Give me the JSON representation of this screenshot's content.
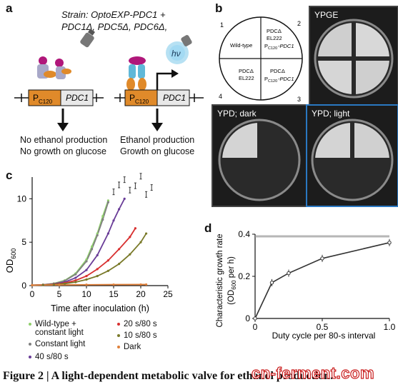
{
  "panel_a": {
    "letter": "a",
    "strain_line1": "Strain: OptoEXP-PDC1 +",
    "strain_line2": "PDC1Δ, PDC5Δ, PDC6Δ,",
    "promoter": "P",
    "promoter_sub": "C120",
    "gene": "PDC1",
    "light_label": "hν",
    "left_outcome_1": "No ethanol production",
    "left_outcome_2": "No growth on glucose",
    "right_outcome_1": "Ethanol production",
    "right_outcome_2": "Growth on glucose"
  },
  "panel_b": {
    "letter": "b",
    "plate_map": {
      "q1": "Wild-type",
      "q2_line1": "PDCΔ",
      "q2_line2": "EL222",
      "q2_line3_main": "P",
      "q2_line3_sub": "C120",
      "q2_line3_tail": "-PDC1",
      "q3_line1": "PDCΔ",
      "q3_line2_main": "P",
      "q3_line2_sub": "C120",
      "q3_line2_tail": "-PDC1",
      "q4_line1": "PDCΔ",
      "q4_line2": "EL222",
      "n1": "1",
      "n2": "2",
      "n3": "3",
      "n4": "4"
    },
    "plates": [
      {
        "label": "YPGE",
        "border": "#444444"
      },
      {
        "label": "YPD; dark",
        "border": "#444444"
      },
      {
        "label": "YPD; light",
        "border": "#2a78c2"
      }
    ]
  },
  "panel_c": {
    "letter": "c",
    "ylabel_main": "OD",
    "ylabel_sub": "600",
    "xlabel": "Time after inoculation (h)",
    "legend": [
      {
        "label_1": "Wild-type +",
        "label_2": "constant light",
        "color": "#8fcf6c"
      },
      {
        "label_1": "Constant light",
        "label_2": "",
        "color": "#808080"
      },
      {
        "label_1": "40 s/80 s",
        "label_2": "",
        "color": "#6a3d98"
      },
      {
        "label_1": "20 s/80 s",
        "label_2": "",
        "color": "#d83030"
      },
      {
        "label_1": "10 s/80 s",
        "label_2": "",
        "color": "#7a7a2a"
      },
      {
        "label_1": "Dark",
        "label_2": "",
        "color": "#e0803a"
      }
    ]
  },
  "panel_d": {
    "letter": "d",
    "ylabel_1": "Characteristic growth rate",
    "ylabel_2_main": "(OD",
    "ylabel_2_sub": "600",
    "ylabel_2_tail": " per h)",
    "xlabel": "Duty cycle per 80-s interval"
  },
  "caption": "Figure 2 | A light-dependent metabolic valve for ethanol production.",
  "watermark": "cn-ferment.com",
  "chart_data": [
    {
      "type": "line",
      "panel": "c",
      "xlim": [
        0,
        25
      ],
      "ylim": [
        0,
        12.5
      ],
      "xticks": [
        0,
        5,
        10,
        15,
        20,
        25
      ],
      "yticks": [
        0,
        5,
        10
      ],
      "series": [
        {
          "name": "Wild-type + constant light",
          "color": "#8fcf6c",
          "x": [
            0,
            2,
            4,
            6,
            8,
            10,
            11,
            12,
            13,
            14
          ],
          "y": [
            0.05,
            0.1,
            0.25,
            0.6,
            1.4,
            3.0,
            4.5,
            6.0,
            8.0,
            9.8
          ]
        },
        {
          "name": "Constant light",
          "color": "#808080",
          "x": [
            0,
            2,
            4,
            6,
            8,
            10,
            11,
            12,
            13,
            14
          ],
          "y": [
            0.05,
            0.1,
            0.22,
            0.55,
            1.3,
            2.8,
            4.2,
            5.8,
            7.6,
            9.6
          ]
        },
        {
          "name": "40 s/80 s",
          "color": "#6a3d98",
          "x": [
            0,
            2,
            4,
            6,
            8,
            10,
            12,
            14,
            15,
            16,
            17
          ],
          "y": [
            0.05,
            0.08,
            0.18,
            0.4,
            0.9,
            1.8,
            3.5,
            6.0,
            7.5,
            8.8,
            10.0
          ]
        },
        {
          "name": "20 s/80 s",
          "color": "#d83030",
          "x": [
            0,
            2,
            4,
            6,
            8,
            10,
            12,
            14,
            16,
            18,
            19
          ],
          "y": [
            0.05,
            0.08,
            0.15,
            0.3,
            0.6,
            1.1,
            1.9,
            2.9,
            4.2,
            5.6,
            6.6
          ]
        },
        {
          "name": "10 s/80 s",
          "color": "#7a7a2a",
          "x": [
            0,
            2,
            4,
            6,
            8,
            10,
            12,
            14,
            16,
            18,
            20,
            21
          ],
          "y": [
            0.05,
            0.07,
            0.12,
            0.22,
            0.4,
            0.7,
            1.1,
            1.7,
            2.5,
            3.6,
            5.0,
            6.0
          ]
        },
        {
          "name": "Dark",
          "color": "#e0803a",
          "x": [
            0,
            5,
            10,
            15,
            20,
            21
          ],
          "y": [
            0.05,
            0.08,
            0.1,
            0.12,
            0.13,
            0.13
          ]
        }
      ],
      "extra_error_points": {
        "x": [
          15,
          16,
          17,
          18,
          19,
          20,
          21,
          22
        ],
        "y": [
          10.8,
          11.6,
          12.2,
          11.0,
          11.5,
          12.6,
          10.5,
          11.3
        ]
      }
    },
    {
      "type": "line",
      "panel": "d",
      "xlim": [
        0,
        1.0
      ],
      "ylim": [
        0,
        0.4
      ],
      "xticks": [
        0,
        0.5,
        1.0
      ],
      "yticks": [
        0,
        0.2,
        0.4
      ],
      "series": [
        {
          "color": "#333333",
          "x": [
            0,
            0.125,
            0.25,
            0.5,
            1.0
          ],
          "y": [
            0.0,
            0.17,
            0.215,
            0.285,
            0.36
          ]
        }
      ],
      "reference_line": 0.39
    }
  ]
}
